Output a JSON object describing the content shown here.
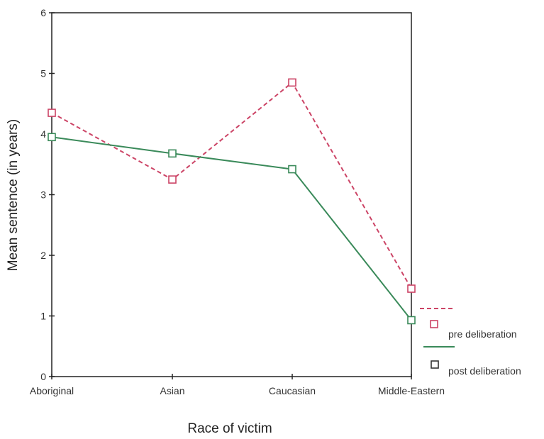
{
  "chart_data": {
    "type": "line",
    "xlabel": "Race of victim",
    "ylabel": "Mean sentence (in years)",
    "categories": [
      "Aboriginal",
      "Asian",
      "Caucasian",
      "Middle-Eastern"
    ],
    "ylim": [
      0,
      6
    ],
    "yticks": [
      "0",
      "1",
      "2",
      "3",
      "4",
      "5",
      "6"
    ],
    "grid": false,
    "legend_position": "bottom-right",
    "series": [
      {
        "name": "pre deliberation",
        "values": [
          4.35,
          3.25,
          4.85,
          1.45
        ],
        "color": "#cc4466",
        "dash": "dashed",
        "marker": "square"
      },
      {
        "name": "post deliberation",
        "values": [
          3.95,
          3.68,
          3.42,
          0.93
        ],
        "color": "#3a8a5a",
        "dash": "solid",
        "marker": "square"
      }
    ]
  }
}
